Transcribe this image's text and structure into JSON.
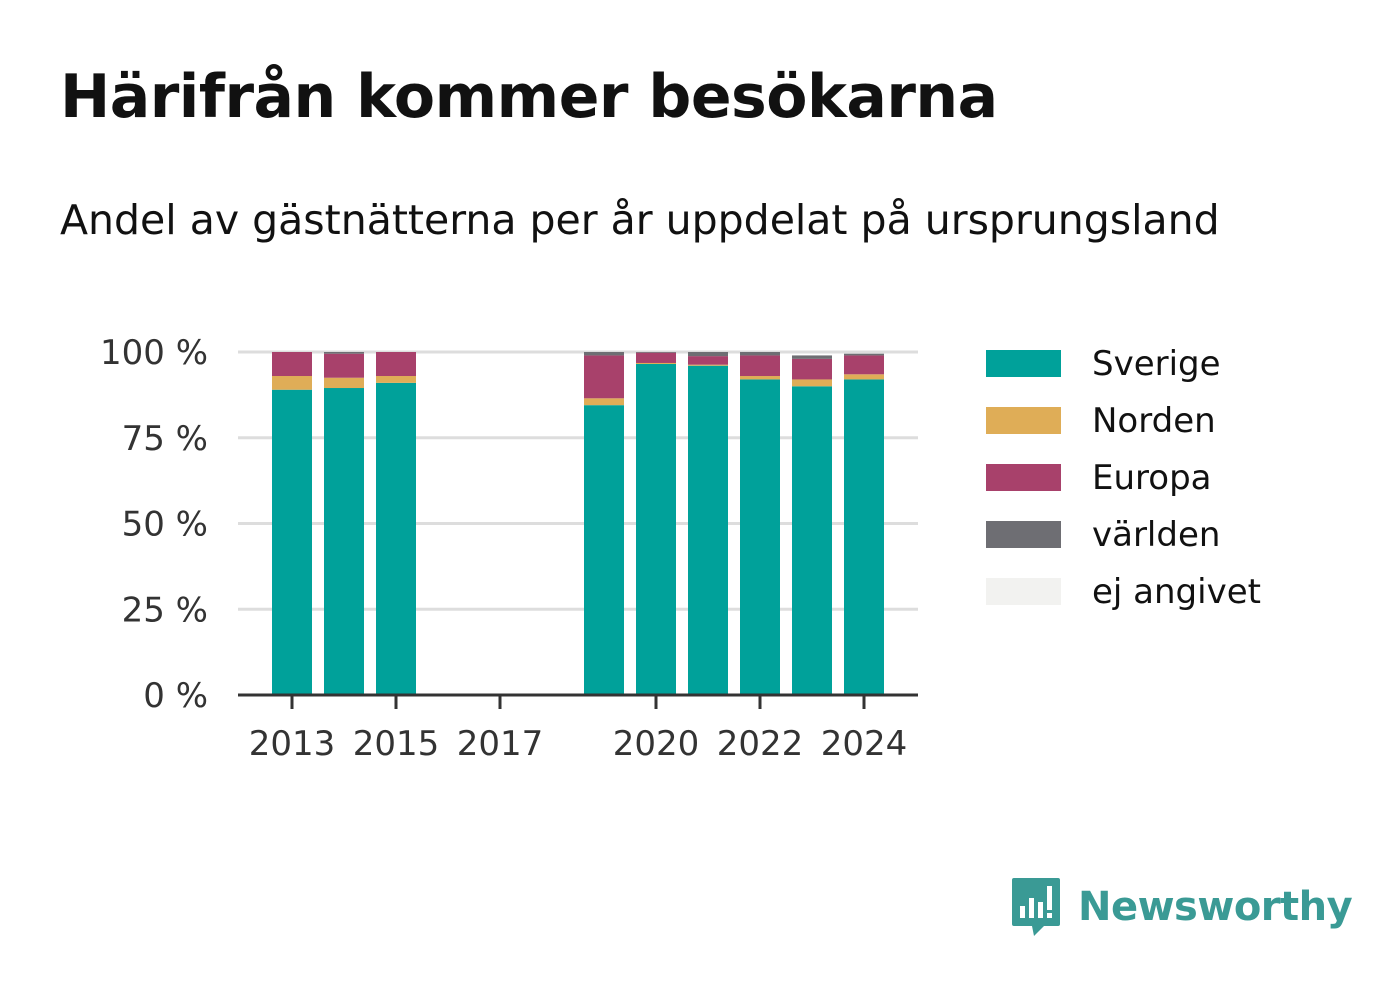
{
  "header": {
    "title": "Härifrån kommer besökarna",
    "subtitle": "Andel av gästnätterna per år uppdelat på ursprungsland"
  },
  "brand": {
    "name": "Newsworthy",
    "color": "#3a9a95",
    "icon": "newsworthy-logo-icon"
  },
  "colors": {
    "Sverige": "#00a19a",
    "Norden": "#dfad57",
    "Europa": "#a8416b",
    "världen": "#6e6e73",
    "ej angivet": "#f2f2f0"
  },
  "chart_data": {
    "type": "bar",
    "stacked": true,
    "x": [
      2013,
      2014,
      2015,
      2016,
      2017,
      2018,
      2019,
      2020,
      2021,
      2022,
      2023,
      2024
    ],
    "xticks": [
      "2013",
      "2015",
      "2017",
      "2020",
      "2022",
      "2024"
    ],
    "ylim": [
      0,
      100
    ],
    "yticks": [
      "0 %",
      "25 %",
      "50 %",
      "75 %",
      "100 %"
    ],
    "grid": true,
    "legend_position": "right",
    "series": [
      {
        "name": "Sverige",
        "values": [
          89,
          89.5,
          91,
          null,
          null,
          null,
          84.5,
          96.5,
          96,
          92,
          90,
          92
        ]
      },
      {
        "name": "Norden",
        "values": [
          4,
          3,
          2,
          null,
          null,
          null,
          2,
          0.3,
          0.3,
          1,
          2,
          1.5
        ]
      },
      {
        "name": "Europa",
        "values": [
          7,
          7,
          7,
          null,
          null,
          null,
          12.5,
          3,
          2.5,
          6,
          6,
          5.5
        ]
      },
      {
        "name": "världen",
        "values": [
          0,
          0.5,
          0,
          null,
          null,
          null,
          1,
          0.2,
          1.2,
          1,
          1,
          0.5
        ]
      },
      {
        "name": "ej angivet",
        "values": [
          0,
          0,
          0,
          null,
          null,
          null,
          0,
          0,
          0,
          0,
          0,
          0
        ]
      }
    ]
  }
}
